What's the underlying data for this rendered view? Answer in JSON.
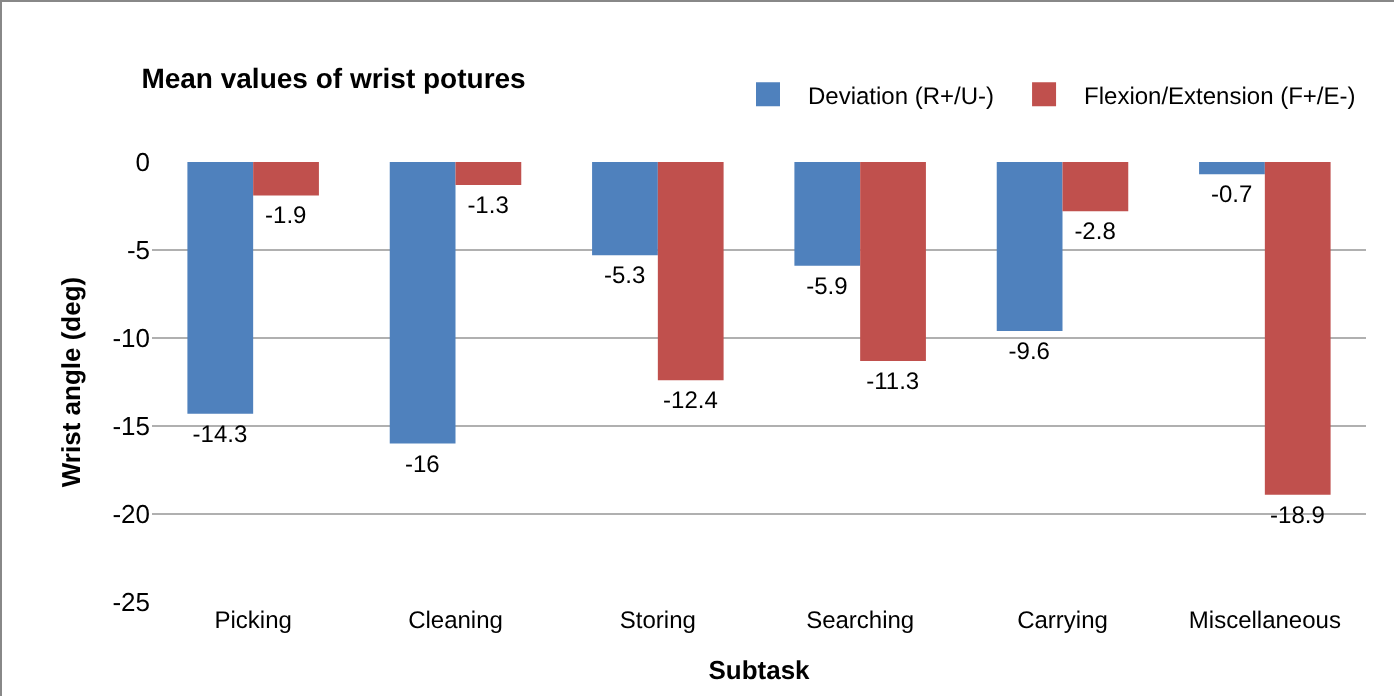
{
  "chart_data": {
    "type": "bar",
    "title": "Mean values of wrist potures",
    "xlabel": "Subtask",
    "ylabel": "Wrist angle (deg)",
    "categories": [
      "Picking",
      "Cleaning",
      "Storing",
      "Searching",
      "Carrying",
      "Miscellaneous"
    ],
    "series": [
      {
        "name": "Deviation (R+/U-)",
        "color": "#4f81bd",
        "values": [
          -14.3,
          -16,
          -5.3,
          -5.9,
          -9.6,
          -0.7
        ]
      },
      {
        "name": "Flexion/Extension (F+/E-)",
        "color": "#c0504d",
        "values": [
          -1.9,
          -1.3,
          -12.4,
          -11.3,
          -2.8,
          -18.9
        ]
      }
    ],
    "ylim": [
      -25,
      0
    ],
    "yticks": [
      -25,
      -20,
      -15,
      -10,
      -5,
      0
    ],
    "grid": "y",
    "legend": "top right",
    "data_labels": true
  }
}
